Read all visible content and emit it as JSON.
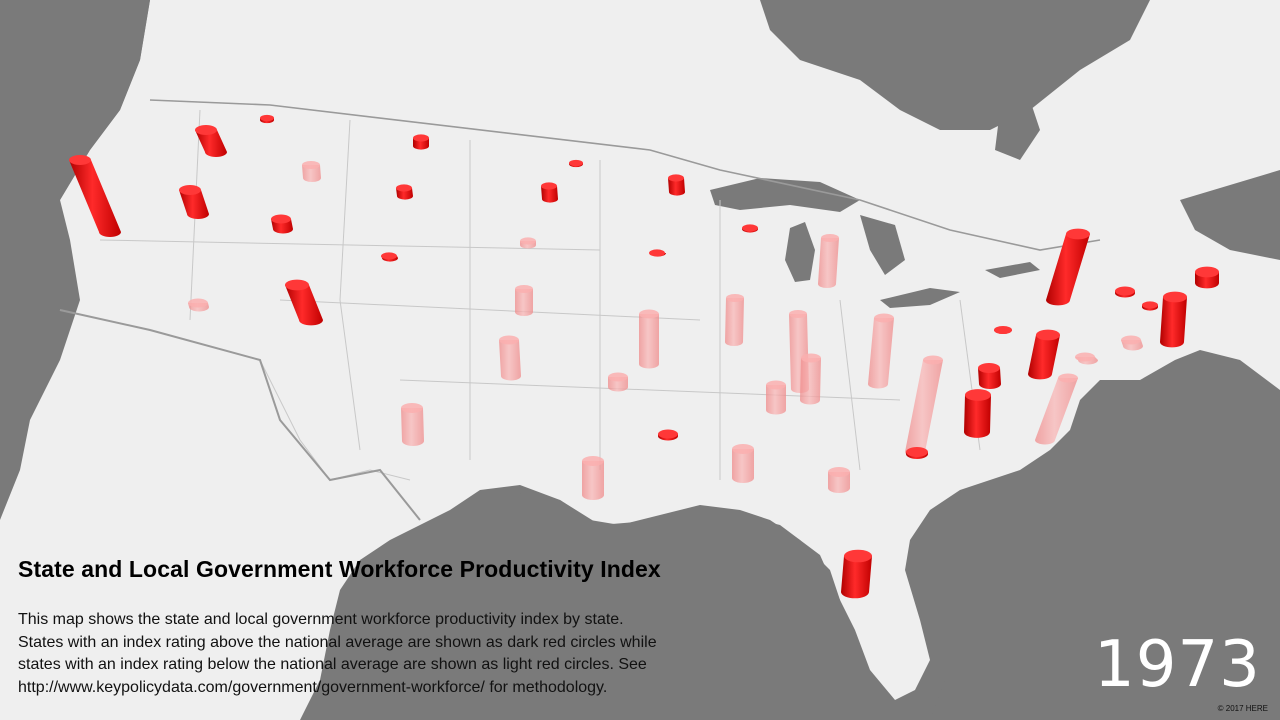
{
  "title": "State and Local Government Workforce Productivity Index",
  "description_lines": [
    "This map shows the state and local government workforce productivity index by state.",
    "States with an index rating above the national average are shown as dark red circles while",
    "states with an index rating below the national average are shown as light red circles. See",
    "http://www.keypolicydata.com/government/government-workforce/ for methodology."
  ],
  "year": "1973",
  "credit": "© 2017 HERE",
  "colors": {
    "water": "#7a7a7a",
    "land": "#efefef",
    "above_average": "#e01010",
    "below_average": "#f2a0a0"
  },
  "legend_categories": [
    "above national average",
    "below national average"
  ]
}
